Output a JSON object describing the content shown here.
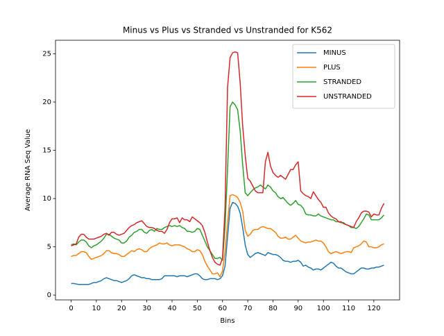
{
  "chart_data": {
    "type": "line",
    "title": "Minus vs Plus vs Stranded vs Unstranded for K562",
    "x_label": "Bins",
    "y_label": "Average RNA Seq Value",
    "x": [
      0,
      1,
      2,
      3,
      4,
      5,
      6,
      7,
      8,
      9,
      10,
      11,
      12,
      13,
      14,
      15,
      16,
      17,
      18,
      19,
      20,
      21,
      22,
      23,
      24,
      25,
      26,
      27,
      28,
      29,
      30,
      31,
      32,
      33,
      34,
      35,
      36,
      37,
      38,
      39,
      40,
      41,
      42,
      43,
      44,
      45,
      46,
      47,
      48,
      49,
      50,
      51,
      52,
      53,
      54,
      55,
      56,
      57,
      58,
      59,
      60,
      61,
      62,
      63,
      64,
      65,
      66,
      67,
      68,
      69,
      70,
      71,
      72,
      73,
      74,
      75,
      76,
      77,
      78,
      79,
      80,
      81,
      82,
      83,
      84,
      85,
      86,
      87,
      88,
      89,
      90,
      91,
      92,
      93,
      94,
      95,
      96,
      97,
      98,
      99,
      100,
      101,
      102,
      103,
      104,
      105,
      106,
      107,
      108,
      109,
      110,
      111,
      112,
      113,
      114,
      115,
      116,
      117,
      118,
      119,
      120,
      121,
      122,
      123,
      124
    ],
    "series": [
      {
        "name": "MINUS",
        "color": "#1f77b4",
        "values": [
          1.2,
          1.2,
          1.15,
          1.1,
          1.1,
          1.1,
          1.1,
          1.1,
          1.2,
          1.3,
          1.3,
          1.4,
          1.5,
          1.7,
          1.8,
          1.7,
          1.6,
          1.5,
          1.5,
          1.4,
          1.3,
          1.4,
          1.5,
          1.7,
          2.0,
          2.1,
          2.0,
          1.9,
          1.8,
          1.8,
          1.7,
          1.7,
          1.6,
          1.6,
          1.6,
          1.6,
          1.7,
          2.0,
          2.0,
          2.0,
          2.0,
          2.0,
          1.9,
          2.0,
          2.0,
          2.0,
          1.9,
          2.0,
          2.1,
          2.2,
          2.2,
          2.0,
          1.7,
          1.6,
          1.6,
          1.7,
          1.7,
          1.7,
          1.6,
          1.7,
          2.0,
          3.0,
          6.0,
          9.0,
          9.6,
          9.5,
          9.2,
          8.5,
          7.0,
          5.2,
          4.2,
          3.9,
          4.1,
          4.3,
          4.4,
          4.3,
          4.2,
          4.1,
          4.4,
          4.3,
          4.2,
          4.2,
          4.1,
          3.9,
          3.6,
          3.5,
          3.5,
          3.4,
          3.5,
          3.5,
          3.6,
          3.4,
          3.0,
          3.1,
          2.9,
          2.8,
          2.6,
          2.7,
          2.7,
          2.6,
          2.8,
          3.0,
          3.2,
          3.4,
          3.3,
          3.0,
          2.8,
          2.8,
          2.6,
          2.4,
          2.3,
          2.2,
          2.2,
          2.4,
          2.6,
          2.8,
          2.8,
          2.7,
          2.7,
          2.8,
          2.8,
          2.9,
          2.9,
          3.0,
          3.1
        ]
      },
      {
        "name": "PLUS",
        "color": "#ff7f0e",
        "values": [
          4.0,
          4.1,
          4.1,
          4.3,
          4.5,
          4.5,
          4.4,
          4.0,
          3.7,
          3.8,
          3.9,
          4.0,
          4.1,
          4.3,
          4.6,
          4.6,
          4.4,
          4.3,
          4.3,
          4.2,
          4.0,
          4.0,
          4.2,
          4.4,
          4.6,
          4.5,
          4.7,
          4.8,
          4.7,
          4.5,
          4.5,
          4.8,
          5.0,
          5.1,
          5.2,
          5.4,
          5.3,
          5.3,
          5.4,
          5.2,
          5.1,
          5.2,
          5.2,
          5.2,
          5.1,
          5.0,
          4.8,
          4.7,
          4.5,
          4.5,
          4.7,
          4.6,
          4.2,
          3.5,
          3.0,
          2.6,
          2.2,
          2.2,
          2.3,
          1.9,
          2.5,
          4.5,
          7.5,
          10.3,
          10.4,
          10.3,
          10.1,
          9.6,
          8.7,
          6.7,
          6.1,
          6.3,
          6.7,
          6.8,
          6.8,
          7.0,
          7.1,
          7.0,
          6.9,
          6.9,
          6.7,
          6.5,
          6.1,
          5.9,
          5.9,
          6.0,
          5.8,
          5.8,
          6.0,
          6.2,
          5.9,
          5.6,
          5.5,
          5.4,
          5.5,
          5.5,
          5.6,
          5.7,
          5.6,
          5.6,
          5.4,
          5.0,
          4.5,
          4.3,
          4.4,
          4.5,
          4.4,
          4.3,
          4.4,
          4.5,
          4.5,
          4.4,
          4.9,
          5.0,
          5.1,
          5.3,
          5.6,
          5.5,
          5.0,
          5.0,
          4.9,
          4.9,
          5.0,
          5.2,
          5.3
        ]
      },
      {
        "name": "STRANDED",
        "color": "#2ca02c",
        "values": [
          5.2,
          5.3,
          5.2,
          5.5,
          5.7,
          5.7,
          5.5,
          5.1,
          4.9,
          5.1,
          5.2,
          5.4,
          5.6,
          5.9,
          6.3,
          6.3,
          6.1,
          5.9,
          5.8,
          5.7,
          5.4,
          5.4,
          5.6,
          6.0,
          6.2,
          6.5,
          6.6,
          6.8,
          6.8,
          6.5,
          6.4,
          6.7,
          6.8,
          6.6,
          6.9,
          6.8,
          6.8,
          7.0,
          7.1,
          7.2,
          7.1,
          7.2,
          7.1,
          7.2,
          7.0,
          6.9,
          6.6,
          6.6,
          6.5,
          6.6,
          6.9,
          6.8,
          6.2,
          5.6,
          5.0,
          4.6,
          4.2,
          3.8,
          3.8,
          3.9,
          3.6,
          7.0,
          13.0,
          19.5,
          20.0,
          19.7,
          19.2,
          17.0,
          13.5,
          10.6,
          10.3,
          10.6,
          10.9,
          11.1,
          11.2,
          11.4,
          11.2,
          11.0,
          11.4,
          11.2,
          10.8,
          10.6,
          10.2,
          10.0,
          10.1,
          9.8,
          9.5,
          9.3,
          9.5,
          9.8,
          9.4,
          9.3,
          9.0,
          8.4,
          8.3,
          8.3,
          8.2,
          8.2,
          8.4,
          8.2,
          8.1,
          8.0,
          7.9,
          7.8,
          7.8,
          7.6,
          7.6,
          7.5,
          7.5,
          7.3,
          7.2,
          7.0,
          7.0,
          6.9,
          7.1,
          7.5,
          7.9,
          8.4,
          8.3,
          7.8,
          7.8,
          7.8,
          7.8,
          8.0,
          8.3
        ]
      },
      {
        "name": "UNSTRANDED",
        "color": "#d62728",
        "values": [
          5.1,
          5.2,
          5.3,
          6.0,
          6.3,
          6.3,
          6.0,
          5.8,
          5.8,
          5.8,
          5.9,
          6.0,
          6.1,
          6.3,
          6.4,
          6.2,
          6.5,
          6.5,
          6.3,
          6.2,
          6.3,
          6.4,
          6.7,
          7.0,
          7.2,
          7.3,
          7.5,
          7.6,
          7.7,
          7.4,
          7.1,
          7.0,
          7.0,
          6.9,
          6.7,
          6.6,
          6.6,
          6.4,
          6.8,
          7.5,
          7.9,
          7.9,
          8.0,
          7.5,
          8.0,
          7.8,
          7.8,
          7.6,
          8.1,
          7.9,
          7.7,
          7.5,
          7.2,
          6.5,
          5.5,
          4.6,
          3.9,
          3.4,
          3.2,
          3.1,
          3.8,
          9.0,
          21.5,
          24.6,
          25.1,
          25.2,
          25.1,
          22.0,
          17.5,
          14.5,
          12.1,
          11.8,
          11.3,
          10.8,
          10.6,
          10.6,
          10.6,
          13.8,
          14.8,
          13.4,
          12.7,
          12.4,
          12.2,
          12.4,
          12.2,
          12.0,
          12.5,
          13.0,
          13.0,
          13.5,
          13.8,
          10.8,
          10.5,
          10.3,
          10.2,
          10.0,
          10.7,
          10.3,
          9.9,
          9.6,
          9.1,
          9.1,
          8.5,
          8.2,
          8.0,
          7.9,
          7.6,
          7.6,
          7.4,
          7.3,
          7.2,
          7.1,
          7.0,
          7.6,
          8.0,
          8.5,
          8.7,
          8.7,
          8.6,
          8.1,
          8.4,
          8.3,
          8.3,
          9.0,
          9.5
        ]
      }
    ],
    "xlim": [
      -6.2,
      130.2
    ],
    "xticks": [
      0,
      10,
      20,
      30,
      40,
      50,
      60,
      70,
      80,
      90,
      100,
      110,
      120
    ],
    "ylim": [
      -0.5,
      26.4
    ],
    "yticks": [
      0,
      5,
      10,
      15,
      20,
      25
    ],
    "legend": "upper right"
  }
}
